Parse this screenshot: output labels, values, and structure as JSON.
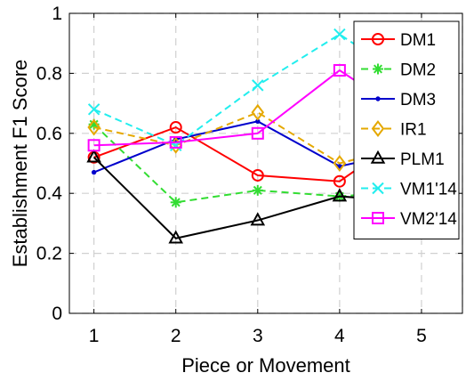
{
  "chart_data": {
    "type": "line",
    "xlabel": "Piece or Movement",
    "ylabel": "Establishment F1 Score",
    "xlim": [
      0.7,
      5.5
    ],
    "ylim": [
      0,
      1
    ],
    "x_ticks": [
      "1",
      "2",
      "3",
      "4",
      "5"
    ],
    "y_ticks": [
      "0",
      "0.2",
      "0.4",
      "0.6",
      "0.8",
      "1"
    ],
    "grid": true,
    "grid_style": "dashed",
    "legend_position": "top-right",
    "x": [
      1,
      2,
      3,
      4,
      5
    ],
    "series": [
      {
        "name": "DM1",
        "values": [
          0.52,
          0.62,
          0.46,
          0.44,
          0.63
        ],
        "color": "#ff0000",
        "line_style": "solid",
        "marker": "circle"
      },
      {
        "name": "DM2",
        "values": [
          0.63,
          0.37,
          0.41,
          0.39,
          0.41
        ],
        "color": "#33dd33",
        "line_style": "dashed",
        "marker": "asterisk"
      },
      {
        "name": "DM3",
        "values": [
          0.47,
          0.58,
          0.64,
          0.49,
          0.55
        ],
        "color": "#0000cc",
        "line_style": "solid",
        "marker": "point"
      },
      {
        "name": "IR1",
        "values": [
          0.62,
          0.56,
          0.67,
          0.5,
          0.57
        ],
        "color": "#e5a800",
        "line_style": "dashed",
        "marker": "diamond"
      },
      {
        "name": "PLM1",
        "values": [
          0.52,
          0.25,
          0.31,
          0.39,
          0.37
        ],
        "color": "#000000",
        "line_style": "solid",
        "marker": "triangle"
      },
      {
        "name": "VM1'14",
        "values": [
          0.68,
          0.56,
          0.76,
          0.93,
          0.75
        ],
        "color": "#22eeee",
        "line_style": "dashed",
        "marker": "x"
      },
      {
        "name": "VM2'14",
        "values": [
          0.56,
          0.57,
          0.6,
          0.81,
          0.63
        ],
        "color": "#ff00ff",
        "line_style": "solid",
        "marker": "square"
      }
    ]
  }
}
